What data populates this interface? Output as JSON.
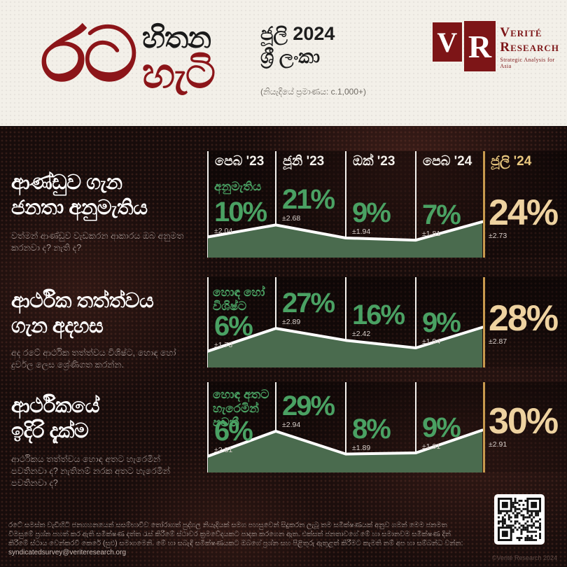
{
  "header": {
    "logotype": {
      "word_main": "රට",
      "word_top": "හිතන",
      "word_bottom": "හැටි"
    },
    "edition": {
      "month_year": "ජූලි 2024",
      "country": "ශ්‍රී ලංකා",
      "sample_note": "(නියැදියේ ප්‍රමාණය: c.1,000+)"
    },
    "brand": {
      "initial_v": "V",
      "initial_r": "R",
      "name_line1": "Verité",
      "name_line2": "Research",
      "tagline": "Strategic Analysis for Asia"
    }
  },
  "columns": [
    "පෙබ '23",
    "ජූනි '23",
    "ඔක් '23",
    "පෙබ '24",
    "ජූලි '24"
  ],
  "sections": [
    {
      "title_line1": "ආණ්ඩුව ගැන",
      "title_line2": "ජනතා අනුමැතිය",
      "subtitle": "වත්මන් ආණ්ඩුව වැඩකරන ආකාරය ඔබ අනුමත කරනවා ද? නැති ද?",
      "series_label": "අනුමැතිය"
    },
    {
      "title_line1": "ආර්ථික තත්ත්වය",
      "title_line2": "ගැන අදහස",
      "subtitle": "අද රටේ ආර්ථික තත්ත්වය විශිෂ්ට, හොඳ හෝ දුර්වල ලෙස ශ්‍රේණිගත කරන්න.",
      "series_label": "හොඳ හෝ විශිෂ්ට"
    },
    {
      "title_line1": "ආර්ථිකයේ",
      "title_line2": "ඉදිරි දැක්ම",
      "subtitle": "ආර්ථිකය තත්ත්වය හොඳ අතට හැරෙමින් පවතිනවා ද? නැතිනම් නරක අතට හැරෙමින් පවතිනවා ද?",
      "series_label": "හොඳ අතට හැරෙමින් පවතී"
    }
  ],
  "chart_data": [
    {
      "type": "area",
      "title": "ආණ්ඩුව ගැන ජනතා අනුමැතිය",
      "categories": [
        "පෙබ '23",
        "ජූනි '23",
        "ඔක් '23",
        "පෙබ '24",
        "ජූලි '24"
      ],
      "series": [
        {
          "name": "අනුමැතිය",
          "values": [
            10,
            21,
            9,
            7,
            24
          ]
        }
      ],
      "value_labels": [
        "10%",
        "21%",
        "9%",
        "7%",
        "24%"
      ],
      "margins_of_error": [
        "±2.04",
        "±2.68",
        "±1.94",
        "±1.81",
        "±2.73"
      ],
      "highlight_index": 4,
      "ylim": [
        0,
        35
      ],
      "grid": false,
      "legend": false
    },
    {
      "type": "area",
      "title": "ආර්ථික තත්ත්වය ගැන අදහස",
      "categories": [
        "පෙබ '23",
        "ජූනි '23",
        "ඔක් '23",
        "පෙබ '24",
        "ජූලි '24"
      ],
      "series": [
        {
          "name": "හොඳ හෝ විශිෂ්ට",
          "values": [
            6,
            27,
            16,
            9,
            28
          ]
        }
      ],
      "value_labels": [
        "6%",
        "27%",
        "16%",
        "9%",
        "28%"
      ],
      "margins_of_error": [
        "±1.73",
        "±2.89",
        "±2.42",
        "±1.94",
        "±2.87"
      ],
      "highlight_index": 4,
      "ylim": [
        0,
        35
      ],
      "grid": false,
      "legend": false
    },
    {
      "type": "area",
      "title": "ආර්ථිකයේ ඉදිරි දැක්ම",
      "categories": [
        "පෙබ '23",
        "ජූනි '23",
        "ඔක් '23",
        "පෙබ '24",
        "ජූලි '24"
      ],
      "series": [
        {
          "name": "හොඳ අතට හැරෙමින් පවතී",
          "values": [
            6,
            29,
            8,
            9,
            30
          ]
        }
      ],
      "value_labels": [
        "6%",
        "29%",
        "8%",
        "9%",
        "30%"
      ],
      "margins_of_error": [
        "±2.81",
        "±2.94",
        "±1.89",
        "±1.91",
        "±2.91"
      ],
      "highlight_index": 4,
      "ylim": [
        0,
        35
      ],
      "grid": false,
      "legend": false
    }
  ],
  "colors": {
    "accent_red": "#8c1519",
    "header_bg": "#f3f0e9",
    "body_bg": "#170c0b",
    "green_value": "#4aa163",
    "gold_value": "#eed2a0",
    "gold_line": "#c89a4e",
    "area_fill": "#4a6b4e",
    "trend_line": "#ffffff"
  },
  "footer": {
    "lines": [
      "රටේ සමස්ත වැඩිහිටි ජනගහනයෙන් සසම්භාවීව තෝරාගත් පුද්ගල නියැදියක් සමග පහසුවෙන් සිදුකරන ලැබූ තම සමීක්ෂණයක් අනුව ගමන් මෙම ජනමත විමසුමේ ප්‍රශ්න පහත් කර ඇති සමීක්ෂණ",
      "දත්ත රැස් කිරීමේ ස්ථාවර ක්‍රමවේදයකට පාදක කරගෙන ඇත. එක්සත් ජනතාවගේ මේ හා සමානවම සමීක්ෂණ දින් කිරීමේ ස්ථාය වෙන්කරවී කෙරේ (සුළු) සමාගමෙනි. මේ හා",
      "සබැඳි සමීක්ෂණයකට ඔබගේ ප්‍රශ්න සහ පිළිතුරු ඇතුළත් කිරීමට කැමති නම් අප හා සම්බන්ධ වන්න: "
    ],
    "email": "syndicatedsurvey@veriteresearch.org",
    "copyright": "©Verité Research 2024"
  }
}
